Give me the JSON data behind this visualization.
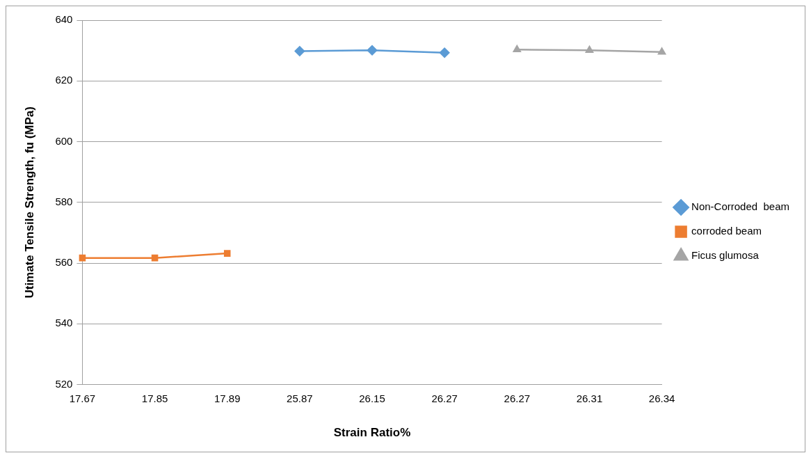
{
  "chart_data": {
    "type": "line",
    "xlabel": "Strain Ratio%",
    "ylabel": "Utimate Tensile Strength, fu (MPa)",
    "categories": [
      "17.67",
      "17.85",
      "17.89",
      "25.87",
      "26.15",
      "26.27",
      "26.27",
      "26.31",
      "26.34"
    ],
    "series": [
      {
        "name": "Non-Corroded  beam",
        "color": "#5b9bd5",
        "marker": "diamond",
        "values": [
          null,
          null,
          null,
          629.8,
          630.1,
          629.3,
          null,
          null,
          null
        ]
      },
      {
        "name": "corroded beam",
        "color": "#ed7d31",
        "marker": "square",
        "values": [
          561.7,
          561.7,
          563.2,
          null,
          null,
          null,
          null,
          null,
          null
        ]
      },
      {
        "name": "Ficus glumosa",
        "color": "#a5a5a5",
        "marker": "triangle",
        "values": [
          null,
          null,
          null,
          null,
          null,
          null,
          630.3,
          630.1,
          629.5
        ]
      }
    ],
    "ylim": [
      520,
      640
    ],
    "yticks": [
      520,
      540,
      560,
      580,
      600,
      620,
      640
    ],
    "grid": "y",
    "legend": "right",
    "line_style": "solid"
  }
}
